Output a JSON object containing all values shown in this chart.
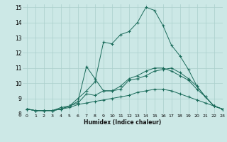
{
  "xlabel": "Humidex (Indice chaleur)",
  "bg_color": "#cce8e6",
  "grid_color": "#aacfcc",
  "line_color": "#1a6b5a",
  "xlim": [
    -0.5,
    23
  ],
  "ylim": [
    8.0,
    15.2
  ],
  "xtick_labels": [
    "0",
    "1",
    "2",
    "3",
    "4",
    "5",
    "6",
    "7",
    "8",
    "9",
    "10",
    "11",
    "12",
    "13",
    "14",
    "15",
    "16",
    "17",
    "18",
    "19",
    "20",
    "21",
    "22",
    "23"
  ],
  "ytick_labels": [
    "8",
    "9",
    "10",
    "11",
    "12",
    "13",
    "14",
    "15"
  ],
  "ytick_vals": [
    8,
    9,
    10,
    11,
    12,
    13,
    14,
    15
  ],
  "series": [
    [
      8.3,
      8.2,
      8.2,
      8.2,
      8.3,
      8.4,
      8.6,
      8.7,
      8.8,
      8.9,
      9.0,
      9.1,
      9.2,
      9.4,
      9.5,
      9.6,
      9.6,
      9.5,
      9.3,
      9.1,
      8.9,
      8.7,
      8.5,
      8.3
    ],
    [
      8.3,
      8.2,
      8.2,
      8.2,
      8.3,
      8.5,
      8.7,
      9.3,
      9.2,
      9.5,
      9.5,
      9.6,
      10.2,
      10.3,
      10.5,
      10.8,
      10.9,
      11.0,
      10.7,
      10.3,
      9.8,
      9.1,
      8.5,
      8.3
    ],
    [
      8.3,
      8.2,
      8.2,
      8.2,
      8.4,
      8.5,
      8.8,
      11.1,
      10.3,
      9.5,
      9.5,
      9.8,
      10.3,
      10.5,
      10.8,
      11.0,
      11.0,
      10.8,
      10.5,
      10.2,
      9.6,
      9.1,
      8.5,
      8.3
    ],
    [
      8.3,
      8.2,
      8.2,
      8.2,
      8.3,
      8.5,
      9.0,
      9.5,
      10.1,
      12.7,
      12.6,
      13.2,
      13.4,
      14.0,
      15.0,
      14.8,
      13.8,
      12.5,
      11.8,
      10.9,
      9.8,
      9.1,
      8.5,
      8.3
    ]
  ]
}
